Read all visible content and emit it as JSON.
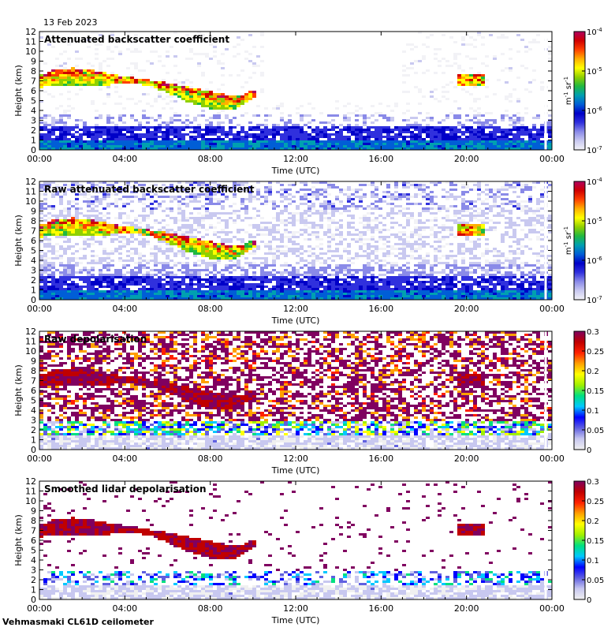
{
  "date_label": "13 Feb 2023",
  "footer": "Vehmasmaki CL61D ceilometer",
  "chart_data": [
    {
      "type": "heatmap",
      "title": "Attenuated backscatter coefficient",
      "xlabel": "Time (UTC)",
      "ylabel": "Height (km)",
      "xticks": [
        "00:00",
        "04:00",
        "08:00",
        "12:00",
        "16:00",
        "20:00",
        "00:00"
      ],
      "xlim_hours": [
        0,
        24
      ],
      "ylim": [
        0,
        12
      ],
      "yticks": [
        0,
        1,
        2,
        3,
        4,
        5,
        6,
        7,
        8,
        9,
        10,
        11,
        12
      ],
      "colorbar": {
        "scale": "log",
        "range": [
          1e-07,
          0.0001
        ],
        "ticks": [
          {
            "base": "10",
            "exp": "-4",
            "v": -4
          },
          {
            "base": "10",
            "exp": "-5",
            "v": -5
          },
          {
            "base": "10",
            "exp": "-6",
            "v": -6
          },
          {
            "base": "10",
            "exp": "-7",
            "v": -7
          }
        ],
        "unit": {
          "m": "m",
          "m_exp": "-1",
          "sr": "sr",
          "sr_exp": "-1"
        }
      },
      "features": {
        "cloud_layer": [
          [
            0,
            7.5
          ],
          [
            0.5,
            8.0
          ],
          [
            1.5,
            8.3
          ],
          [
            2.5,
            8.1
          ],
          [
            3.5,
            7.6
          ],
          [
            4.5,
            7.3
          ],
          [
            5.5,
            7.0
          ],
          [
            6.5,
            6.6
          ],
          [
            7.5,
            6.2
          ],
          [
            8.5,
            5.7
          ],
          [
            9.3,
            5.5
          ],
          [
            10.2,
            6.1
          ]
        ],
        "isolated_cloud_20h": {
          "hours": [
            19.5,
            20.8
          ],
          "height_km": [
            6.5,
            7.8
          ]
        },
        "boundary_layer_top_km": 2.5
      }
    },
    {
      "type": "heatmap",
      "title": "Raw attenuated backscatter coefficient",
      "xlabel": "Time (UTC)",
      "ylabel": "Height (km)",
      "xticks": [
        "00:00",
        "04:00",
        "08:00",
        "12:00",
        "16:00",
        "20:00",
        "00:00"
      ],
      "xlim_hours": [
        0,
        24
      ],
      "ylim": [
        0,
        12
      ],
      "yticks": [
        0,
        1,
        2,
        3,
        4,
        5,
        6,
        7,
        8,
        9,
        10,
        11,
        12
      ],
      "colorbar": {
        "scale": "log",
        "range": [
          1e-07,
          0.0001
        ],
        "ticks": [
          {
            "base": "10",
            "exp": "-4",
            "v": -4
          },
          {
            "base": "10",
            "exp": "-5",
            "v": -5
          },
          {
            "base": "10",
            "exp": "-6",
            "v": -6
          },
          {
            "base": "10",
            "exp": "-7",
            "v": -7
          }
        ],
        "unit": {
          "m": "m",
          "m_exp": "-1",
          "sr": "sr",
          "sr_exp": "-1"
        }
      },
      "features": {
        "cloud_layer": [
          [
            0,
            7.5
          ],
          [
            0.5,
            8.0
          ],
          [
            1.5,
            8.3
          ],
          [
            2.5,
            8.1
          ],
          [
            3.5,
            7.6
          ],
          [
            4.5,
            7.3
          ],
          [
            5.5,
            7.0
          ],
          [
            6.5,
            6.6
          ],
          [
            7.5,
            6.2
          ],
          [
            8.5,
            5.7
          ],
          [
            9.3,
            5.5
          ],
          [
            10.2,
            6.1
          ]
        ],
        "isolated_cloud_20h": {
          "hours": [
            19.5,
            20.8
          ],
          "height_km": [
            6.5,
            7.8
          ]
        },
        "boundary_layer_top_km": 2.5
      }
    },
    {
      "type": "heatmap",
      "title": "Raw depolarisation",
      "xlabel": "Time (UTC)",
      "ylabel": "Height (km)",
      "xticks": [
        "00:00",
        "04:00",
        "08:00",
        "12:00",
        "16:00",
        "20:00",
        "00:00"
      ],
      "xlim_hours": [
        0,
        24
      ],
      "ylim": [
        0,
        12
      ],
      "yticks": [
        0,
        1,
        2,
        3,
        4,
        5,
        6,
        7,
        8,
        9,
        10,
        11,
        12
      ],
      "colorbar": {
        "scale": "linear",
        "range": [
          0,
          0.3
        ],
        "ticks": [
          "0",
          "0.05",
          "0.1",
          "0.15",
          "0.2",
          "0.25",
          "0.3"
        ]
      },
      "features": {
        "cloud_layer_depol": [
          0.25,
          0.3
        ]
      }
    },
    {
      "type": "heatmap",
      "title": "Smoothed lidar depolarisation",
      "xlabel": "Time (UTC)",
      "ylabel": "Height (km)",
      "xticks": [
        "00:00",
        "04:00",
        "08:00",
        "12:00",
        "16:00",
        "20:00",
        "00:00"
      ],
      "xlim_hours": [
        0,
        24
      ],
      "ylim": [
        0,
        12
      ],
      "yticks": [
        0,
        1,
        2,
        3,
        4,
        5,
        6,
        7,
        8,
        9,
        10,
        11,
        12
      ],
      "colorbar": {
        "scale": "linear",
        "range": [
          0,
          0.3
        ],
        "ticks": [
          "0",
          "0.05",
          "0.1",
          "0.15",
          "0.2",
          "0.25",
          "0.3"
        ]
      },
      "features": {
        "cloud_layer_depol": [
          0.25,
          0.3
        ]
      }
    }
  ]
}
